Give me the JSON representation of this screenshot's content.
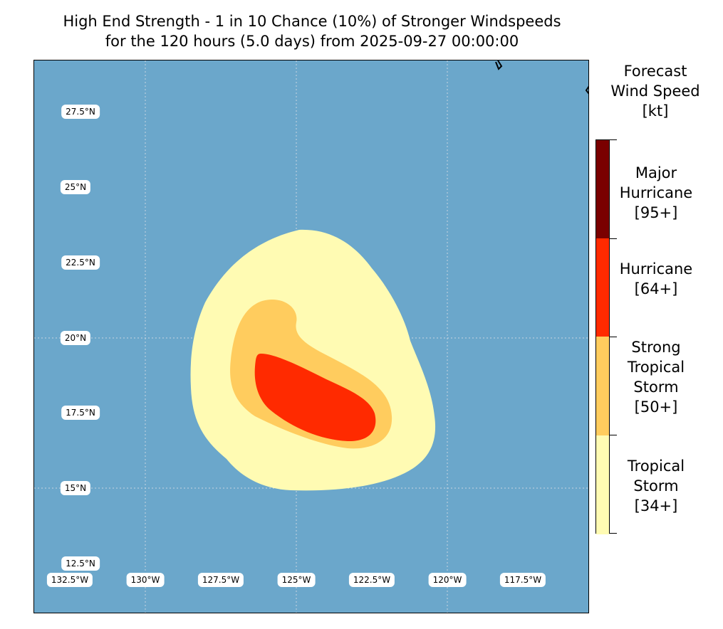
{
  "title": {
    "line1": "High End Strength - 1 in 10 Chance (10%) of Stronger Windspeeds",
    "line2": "for the 120 hours (5.0 days) from 2025-09-27 00:00:00"
  },
  "map": {
    "ocean_color": "#6ba7cb",
    "lat_labels": [
      "27.5°N",
      "25°N",
      "22.5°N",
      "20°N",
      "17.5°N",
      "15°N",
      "12.5°N"
    ],
    "lon_labels": [
      "132.5°W",
      "130°W",
      "127.5°W",
      "125°W",
      "122.5°W",
      "120°W",
      "117.5°W"
    ],
    "swaths": [
      {
        "category": "Tropical Storm [34+]",
        "color": "#fffbb3"
      },
      {
        "category": "Strong Tropical Storm [50+]",
        "color": "#ffcc5e"
      },
      {
        "category": "Hurricane [64+]",
        "color": "#ff2a00"
      }
    ]
  },
  "colorbar": {
    "title_lines": [
      "Forecast",
      "Wind Speed",
      "[kt]"
    ],
    "categories": [
      {
        "lines": [
          "Major",
          "Hurricane",
          "[95+]"
        ],
        "color": "#7a0000"
      },
      {
        "lines": [
          "Hurricane",
          "[64+]"
        ],
        "color": "#ff2a00"
      },
      {
        "lines": [
          "Strong",
          "Tropical",
          "Storm",
          "[50+]"
        ],
        "color": "#ffcc5e"
      },
      {
        "lines": [
          "Tropical",
          "Storm",
          "[34+]"
        ],
        "color": "#fffbb3"
      }
    ]
  }
}
